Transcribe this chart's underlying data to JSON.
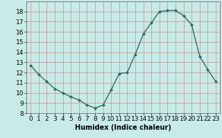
{
  "x": [
    0,
    1,
    2,
    3,
    4,
    5,
    6,
    7,
    8,
    9,
    10,
    11,
    12,
    13,
    14,
    15,
    16,
    17,
    18,
    19,
    20,
    21,
    22,
    23
  ],
  "y": [
    12.7,
    11.8,
    11.1,
    10.4,
    10.0,
    9.6,
    9.3,
    8.8,
    8.5,
    8.8,
    10.3,
    11.9,
    12.0,
    13.8,
    15.8,
    16.9,
    18.0,
    18.1,
    18.1,
    17.6,
    16.7,
    13.6,
    12.3,
    11.1
  ],
  "line_color": "#2e6b5e",
  "marker": "D",
  "marker_size": 2.0,
  "linewidth": 1.0,
  "bg_color": "#c8ebe8",
  "grid_color": "#d08888",
  "xlabel": "Humidex (Indice chaleur)",
  "xlabel_fontsize": 7,
  "xlim": [
    -0.5,
    23.5
  ],
  "ylim": [
    8,
    19
  ],
  "yticks": [
    8,
    9,
    10,
    11,
    12,
    13,
    14,
    15,
    16,
    17,
    18
  ],
  "xticks": [
    0,
    1,
    2,
    3,
    4,
    5,
    6,
    7,
    8,
    9,
    10,
    11,
    12,
    13,
    14,
    15,
    16,
    17,
    18,
    19,
    20,
    21,
    22,
    23
  ],
  "tick_fontsize": 6.5
}
